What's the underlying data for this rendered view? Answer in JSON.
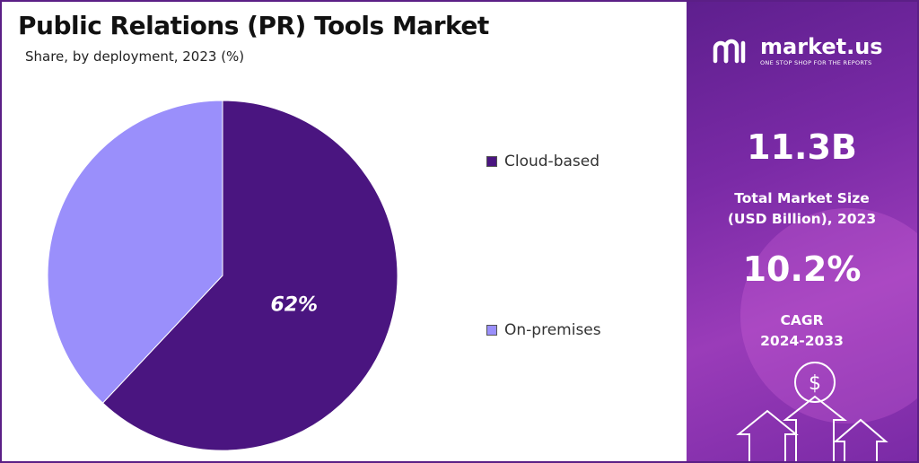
{
  "chart_data": {
    "type": "pie",
    "title": "Public Relations (PR) Tools Market",
    "subtitle": "Share, by deployment, 2023 (%)",
    "categories": [
      "Cloud-based",
      "On-premises"
    ],
    "values": [
      62,
      38
    ],
    "value_labels": [
      "62%",
      ""
    ],
    "colors": [
      "#4a1580",
      "#9a8ffb"
    ],
    "legend_position": "right"
  },
  "brand": {
    "name": "market.us",
    "tagline": "ONE STOP SHOP FOR THE REPORTS"
  },
  "stats": {
    "market_size_value": "11.3B",
    "market_size_label_1": "Total Market Size",
    "market_size_label_2": "(USD Billion), 2023",
    "cagr_value": "10.2%",
    "cagr_label_1": "CAGR",
    "cagr_label_2": "2024-2033",
    "currency_symbol": "$"
  }
}
